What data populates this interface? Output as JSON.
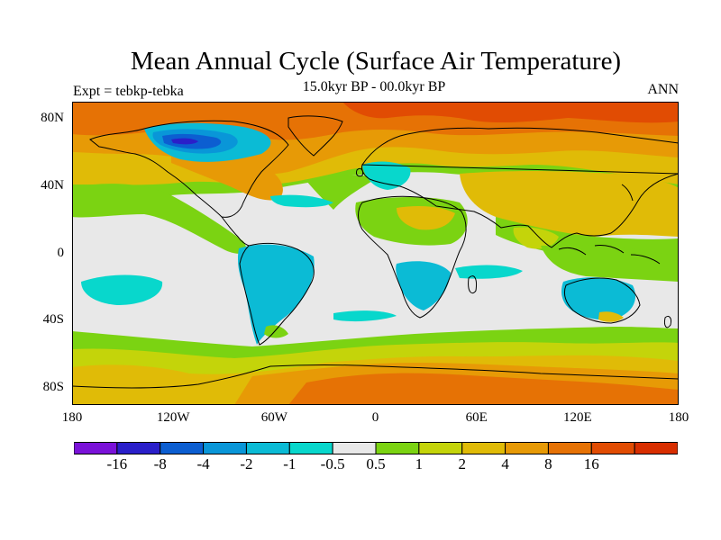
{
  "title": "Mean Annual Cycle (Surface Air Temperature)",
  "subtitle": "15.0kyr BP - 00.0kyr BP",
  "experiment_label": "Expt = tebkp-tebka",
  "season_label": "ANN",
  "chart_data": {
    "type": "heatmap",
    "projection": "cylindrical equidistant",
    "variable": "Surface Air Temperature difference",
    "x_axis": {
      "range": [
        -180,
        180
      ],
      "ticks": [
        "180",
        "120W",
        "60W",
        "0",
        "60E",
        "120E",
        "180"
      ],
      "tick_values": [
        -180,
        -120,
        -60,
        0,
        60,
        120,
        180
      ]
    },
    "y_axis": {
      "range": [
        -90,
        90
      ],
      "ticks": [
        "80N",
        "40N",
        "0",
        "40S",
        "80S"
      ],
      "tick_values": [
        80,
        40,
        0,
        -40,
        -80
      ]
    },
    "colorbar": {
      "colors": [
        "#7a12d8",
        "#2a1fc9",
        "#0c5ed1",
        "#0996d8",
        "#0bbbd5",
        "#08d7cc",
        "#e8e8e8",
        "#7bd312",
        "#c4d40a",
        "#e0bb07",
        "#e79a06",
        "#e67205",
        "#e14c03",
        "#d82e00"
      ],
      "labels": [
        "-16",
        "-8",
        "-4",
        "-2",
        "-1",
        "-0.5",
        "0.5",
        "1",
        "2",
        "4",
        "8",
        "16"
      ]
    }
  }
}
